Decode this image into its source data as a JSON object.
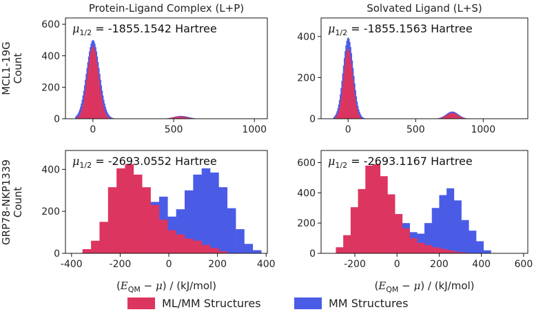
{
  "colors": {
    "mlmm": "#dc3560",
    "mm": "#4a5ce6",
    "axis": "#111111"
  },
  "legend": {
    "mlmm_label": "ML/MM Structures",
    "mm_label": "MM Structures"
  },
  "chart_data": [
    {
      "type": "histogram",
      "title": "Protein-Ligand Complex (L+P)",
      "row_label": "MCL1-19G",
      "ylabel": "Count",
      "annotation": {
        "mu": "μ",
        "sub": "1/2",
        "text": " = -1855.1542 Hartree"
      },
      "xlim": [
        -170,
        1080
      ],
      "ylim": [
        0,
        640
      ],
      "xticks": [
        0,
        500,
        1000
      ],
      "yticks": [
        0,
        200,
        400,
        600
      ],
      "series": [
        {
          "name": "MM Structures",
          "color": "mm",
          "kind": "normal",
          "mean": 0,
          "sd": 40,
          "peak": 500,
          "bin": 5,
          "range": [
            -110,
            160
          ],
          "tail": {
            "mean": 545,
            "sd": 45,
            "peak": 18,
            "bin": 5,
            "range": [
              420,
              670
            ]
          }
        },
        {
          "name": "ML/MM Structures",
          "color": "mlmm",
          "kind": "normal",
          "mean": 0,
          "sd": 34,
          "peak": 460,
          "bin": 5,
          "range": [
            -100,
            130
          ],
          "tail": {
            "mean": 540,
            "sd": 42,
            "peak": 14,
            "bin": 5,
            "range": [
              420,
              660
            ]
          }
        }
      ]
    },
    {
      "type": "histogram",
      "title": "Solvated Ligand (L+S)",
      "row_label": "",
      "ylabel": "",
      "annotation": {
        "mu": "μ",
        "sub": "1/2",
        "text": " = -1855.1563 Hartree"
      },
      "xlim": [
        -200,
        1330
      ],
      "ylim": [
        0,
        490
      ],
      "xticks": [
        0,
        500,
        1000
      ],
      "yticks": [
        0,
        200,
        400
      ],
      "series": [
        {
          "name": "MM Structures",
          "color": "mm",
          "kind": "normal",
          "mean": 0,
          "sd": 38,
          "peak": 395,
          "bin": 6,
          "range": [
            -110,
            150
          ],
          "tail": {
            "mean": 770,
            "sd": 45,
            "peak": 35,
            "bin": 6,
            "range": [
              650,
              890
            ]
          }
        },
        {
          "name": "ML/MM Structures",
          "color": "mlmm",
          "kind": "normal",
          "mean": 0,
          "sd": 33,
          "peak": 340,
          "bin": 6,
          "range": [
            -100,
            130
          ],
          "tail": {
            "mean": 770,
            "sd": 42,
            "peak": 28,
            "bin": 6,
            "range": [
              650,
              880
            ]
          }
        }
      ]
    },
    {
      "type": "histogram",
      "title": "",
      "row_label": "GRP78-NKP1339",
      "ylabel": "Count",
      "xlabel": "(E_QM − μ) / (kJ/mol)",
      "annotation": {
        "mu": "μ",
        "sub": "1/2",
        "text": " = -2693.0552 Hartree"
      },
      "xlim": [
        -425,
        405
      ],
      "ylim": [
        0,
        490
      ],
      "xticks": [
        -400,
        -200,
        0,
        200,
        400
      ],
      "yticks": [
        0,
        200,
        400
      ],
      "series": [
        {
          "name": "MM Structures",
          "color": "mm",
          "kind": "bins",
          "edges": [
            -355,
            -320,
            -285,
            -250,
            -215,
            -180,
            -145,
            -110,
            -75,
            -40,
            -5,
            30,
            65,
            100,
            135,
            170,
            205,
            240,
            275,
            310,
            345,
            380
          ],
          "counts": [
            5,
            8,
            10,
            15,
            25,
            45,
            80,
            150,
            245,
            270,
            175,
            210,
            300,
            375,
            405,
            385,
            315,
            215,
            115,
            45,
            15
          ]
        },
        {
          "name": "ML/MM Structures",
          "color": "mlmm",
          "kind": "bins",
          "edges": [
            -355,
            -320,
            -285,
            -250,
            -215,
            -180,
            -145,
            -110,
            -75,
            -40,
            -5,
            30,
            65,
            100,
            135,
            170,
            205,
            240
          ],
          "counts": [
            20,
            60,
            150,
            315,
            405,
            425,
            375,
            315,
            230,
            160,
            110,
            90,
            70,
            60,
            40,
            25,
            10
          ]
        }
      ]
    },
    {
      "type": "histogram",
      "title": "",
      "row_label": "",
      "ylabel": "",
      "xlabel": "(E_QM − μ) / (kJ/mol)",
      "annotation": {
        "mu": "μ",
        "sub": "1/2",
        "text": " = -2693.1167 Hartree"
      },
      "xlim": [
        -360,
        620
      ],
      "ylim": [
        0,
        680
      ],
      "xticks": [
        -200,
        0,
        200,
        400,
        600
      ],
      "yticks": [
        0,
        200,
        400,
        600
      ],
      "series": [
        {
          "name": "MM Structures",
          "color": "mm",
          "kind": "bins",
          "edges": [
            -290,
            -255,
            -220,
            -185,
            -150,
            -115,
            -80,
            -45,
            -10,
            25,
            60,
            95,
            130,
            165,
            200,
            235,
            270,
            305,
            340,
            375,
            410,
            445
          ],
          "counts": [
            5,
            10,
            15,
            30,
            50,
            80,
            110,
            150,
            170,
            200,
            140,
            130,
            200,
            300,
            385,
            430,
            350,
            220,
            150,
            80,
            20
          ]
        },
        {
          "name": "ML/MM Structures",
          "color": "mlmm",
          "kind": "bins",
          "edges": [
            -290,
            -255,
            -220,
            -185,
            -150,
            -115,
            -80,
            -45,
            -10,
            25,
            60,
            95,
            130,
            165,
            200,
            235,
            270,
            305,
            340
          ],
          "counts": [
            40,
            120,
            305,
            425,
            580,
            590,
            510,
            390,
            260,
            165,
            100,
            70,
            55,
            40,
            30,
            20,
            10,
            5
          ]
        }
      ]
    }
  ]
}
